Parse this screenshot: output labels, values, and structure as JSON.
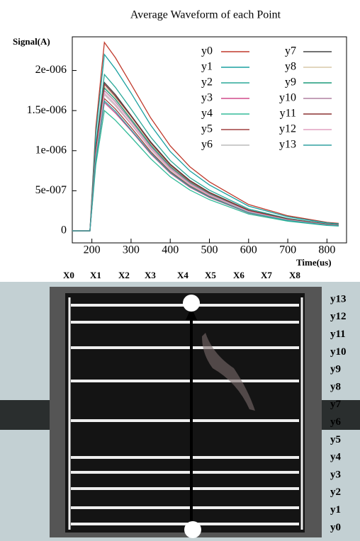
{
  "chart_data": {
    "type": "line",
    "title": "Average Waveform of each Point",
    "ylabel": "Signal(A)",
    "xlabel": "Time(us)",
    "x": [
      150,
      195,
      210,
      232,
      260,
      300,
      350,
      400,
      450,
      500,
      600,
      700,
      800,
      830
    ],
    "xlim": [
      150,
      850
    ],
    "xticks": [
      200,
      300,
      400,
      500,
      600,
      700,
      800
    ],
    "ylim": [
      -1.5e-07,
      2.42e-06
    ],
    "yticks": [
      0,
      {
        "value": 5e-07,
        "label": "5e-007"
      },
      {
        "value": 1e-06,
        "label": "1e-006"
      },
      {
        "value": 1.5e-06,
        "label": "1.5e-006"
      },
      {
        "value": 2e-06,
        "label": "2e-006"
      }
    ],
    "legend": "upper right",
    "series": [
      {
        "name": "y0",
        "color": "#c0392b",
        "values": [
          0,
          0,
          1.29e-06,
          2.35e-06,
          2.16e-06,
          1.83e-06,
          1.41e-06,
          1.06e-06,
          7.99e-07,
          6.11e-07,
          3.29e-07,
          1.88e-07,
          1.06e-07,
          9.4e-08
        ]
      },
      {
        "name": "y1",
        "color": "#1aa0a0",
        "values": [
          0,
          0,
          1.21e-06,
          2.2e-06,
          2.02e-06,
          1.72e-06,
          1.32e-06,
          9.9e-07,
          7.48e-07,
          5.72e-07,
          3.08e-07,
          1.76e-07,
          9.9e-08,
          8.8e-08
        ]
      },
      {
        "name": "y2",
        "color": "#2aa898",
        "values": [
          0,
          0,
          1.07e-06,
          1.95e-06,
          1.79e-06,
          1.52e-06,
          1.17e-06,
          8.78e-07,
          6.63e-07,
          5.07e-07,
          2.73e-07,
          1.56e-07,
          8.78e-08,
          7.8e-08
        ]
      },
      {
        "name": "y3",
        "color": "#d04a8a",
        "values": [
          0,
          0,
          8.8e-07,
          1.6e-06,
          1.47e-06,
          1.25e-06,
          9.6e-07,
          7.2e-07,
          5.44e-07,
          4.16e-07,
          2.24e-07,
          1.28e-07,
          7.2e-08,
          6.4e-08
        ]
      },
      {
        "name": "y4",
        "color": "#33bb99",
        "values": [
          0,
          0,
          8.25e-07,
          1.5e-06,
          1.38e-06,
          1.17e-06,
          9e-07,
          6.75e-07,
          5.1e-07,
          3.9e-07,
          2.1e-07,
          1.2e-07,
          6.75e-08,
          6e-08
        ]
      },
      {
        "name": "y5",
        "color": "#a04040",
        "values": [
          0,
          0,
          9.08e-07,
          1.65e-06,
          1.52e-06,
          1.29e-06,
          9.9e-07,
          7.43e-07,
          5.61e-07,
          4.29e-07,
          2.31e-07,
          1.32e-07,
          7.43e-08,
          6.6e-08
        ]
      },
      {
        "name": "y6",
        "color": "#bbbbbb",
        "values": [
          0,
          0,
          9.35e-07,
          1.7e-06,
          1.56e-06,
          1.33e-06,
          1.02e-06,
          7.65e-07,
          5.78e-07,
          4.42e-07,
          2.38e-07,
          1.36e-07,
          7.65e-08,
          6.8e-08
        ]
      },
      {
        "name": "y7",
        "color": "#444444",
        "values": [
          0,
          0,
          1.02e-06,
          1.85e-06,
          1.7e-06,
          1.44e-06,
          1.11e-06,
          8.33e-07,
          6.29e-07,
          4.81e-07,
          2.59e-07,
          1.48e-07,
          8.33e-08,
          7.4e-08
        ]
      },
      {
        "name": "y8",
        "color": "#d8c8a8",
        "values": [
          0,
          0,
          9.9e-07,
          1.8e-06,
          1.66e-06,
          1.4e-06,
          1.08e-06,
          8.1e-07,
          6.12e-07,
          4.68e-07,
          2.52e-07,
          1.44e-07,
          8.1e-08,
          7.2e-08
        ]
      },
      {
        "name": "y9",
        "color": "#1a9a7a",
        "values": [
          0,
          0,
          9.79e-07,
          1.78e-06,
          1.64e-06,
          1.39e-06,
          1.07e-06,
          8.01e-07,
          6.05e-07,
          4.63e-07,
          2.49e-07,
          1.42e-07,
          8.01e-08,
          7.12e-08
        ]
      },
      {
        "name": "y10",
        "color": "#b080a0",
        "values": [
          0,
          0,
          9.63e-07,
          1.75e-06,
          1.61e-06,
          1.37e-06,
          1.05e-06,
          7.88e-07,
          5.95e-07,
          4.55e-07,
          2.45e-07,
          1.4e-07,
          7.88e-08,
          7e-08
        ]
      },
      {
        "name": "y11",
        "color": "#8b3030",
        "values": [
          0,
          0,
          1.01e-06,
          1.83e-06,
          1.68e-06,
          1.43e-06,
          1.1e-06,
          8.24e-07,
          6.22e-07,
          4.76e-07,
          2.56e-07,
          1.46e-07,
          8.24e-08,
          7.32e-08
        ]
      },
      {
        "name": "y12",
        "color": "#e0a0c0",
        "values": [
          0,
          0,
          9.46e-07,
          1.72e-06,
          1.58e-06,
          1.34e-06,
          1.03e-06,
          7.74e-07,
          5.85e-07,
          4.47e-07,
          2.41e-07,
          1.38e-07,
          7.74e-08,
          6.88e-08
        ]
      },
      {
        "name": "y13",
        "color": "#30a0a0",
        "values": [
          0,
          0,
          8.91e-07,
          1.62e-06,
          1.49e-06,
          1.26e-06,
          9.72e-07,
          7.29e-07,
          5.51e-07,
          4.21e-07,
          2.27e-07,
          1.3e-07,
          7.29e-08,
          6.48e-08
        ]
      }
    ]
  },
  "photo": {
    "x_labels": [
      "X0",
      "X1",
      "X2",
      "X3",
      "X4",
      "X5",
      "X6",
      "X7",
      "X8"
    ],
    "y_labels": [
      "y13",
      "y12",
      "y11",
      "y10",
      "y9",
      "y8",
      "y7",
      "y6",
      "y5",
      "y4",
      "y3",
      "y2",
      "y1",
      "y0"
    ]
  }
}
